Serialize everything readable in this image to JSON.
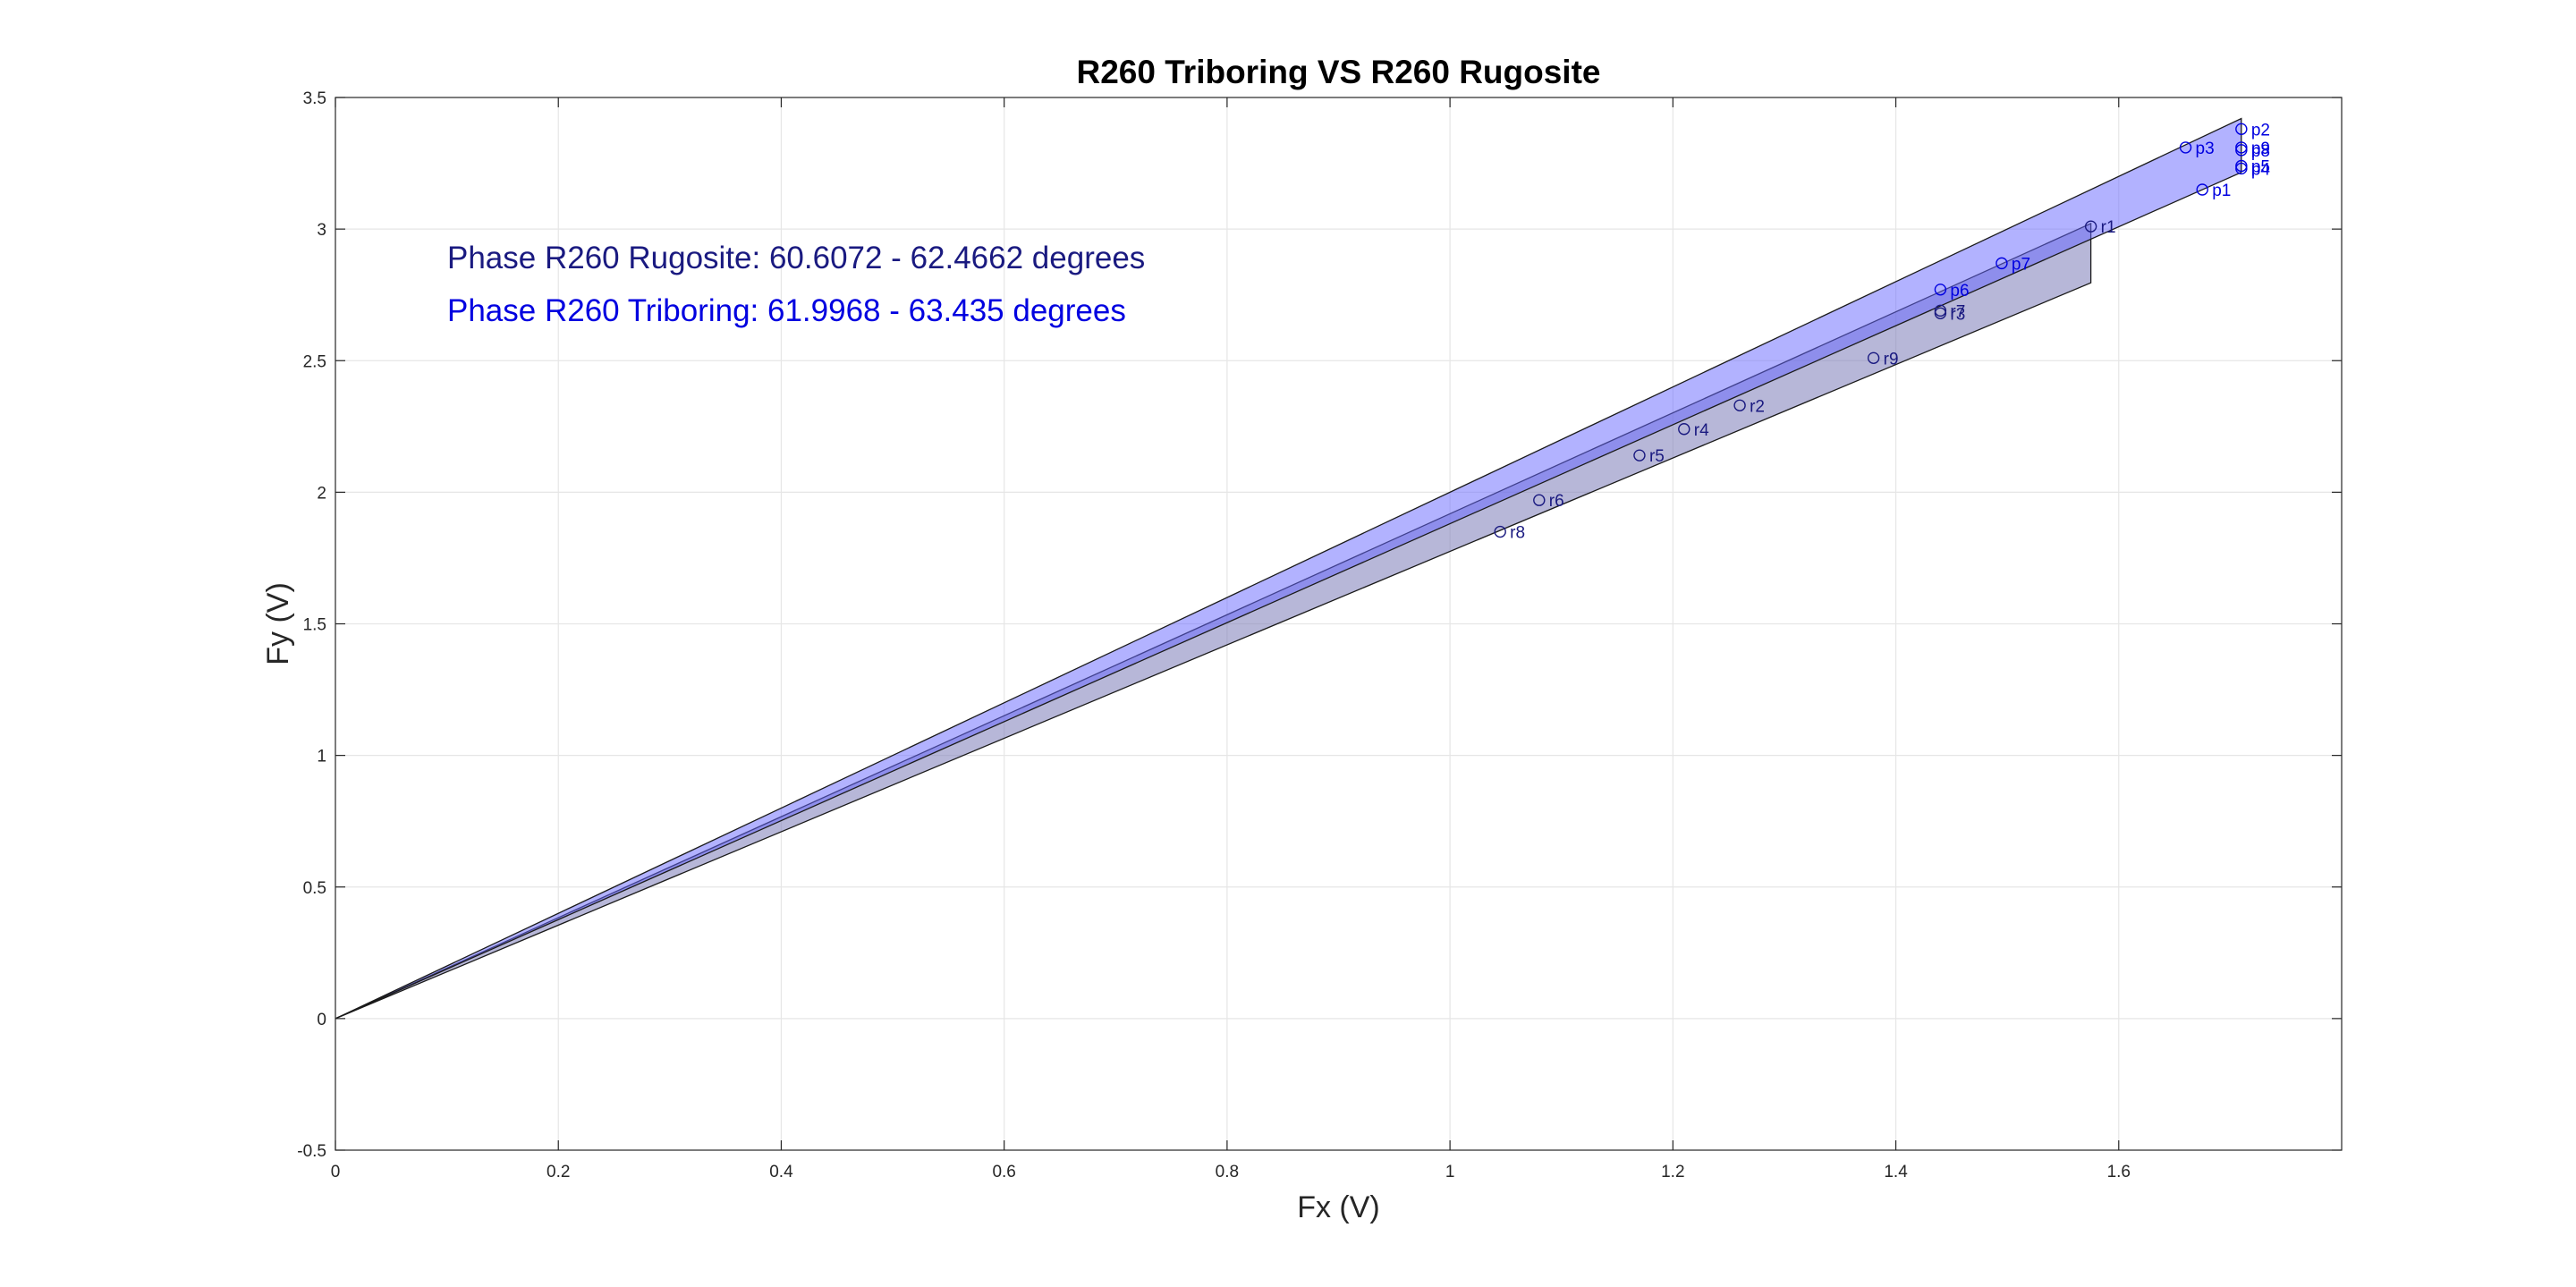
{
  "chart_data": {
    "type": "scatter",
    "title": "R260 Triboring VS R260 Rugosite",
    "xlabel": "Fx (V)",
    "ylabel": "Fy (V)",
    "xlim": [
      0,
      1.8
    ],
    "ylim": [
      -0.5,
      3.5
    ],
    "x_ticks": [
      "0",
      "0.2",
      "0.4",
      "0.6",
      "0.8",
      "1",
      "1.2",
      "1.4",
      "1.6"
    ],
    "x_tick_values": [
      0,
      0.2,
      0.4,
      0.6,
      0.8,
      1,
      1.2,
      1.4,
      1.6
    ],
    "y_ticks": [
      "-0.5",
      "0",
      "0.5",
      "1",
      "1.5",
      "2",
      "2.5",
      "3",
      "3.5"
    ],
    "y_tick_values": [
      -0.5,
      0,
      0.5,
      1,
      1.5,
      2,
      2.5,
      3,
      3.5
    ],
    "grid": true,
    "annotations": [
      {
        "text": "Phase R260 Rugosite: 60.6072 - 62.4662 degrees",
        "color": "#1a1a80"
      },
      {
        "text": "Phase R260 Triboring: 61.9968 - 63.435 degrees",
        "color": "#0000e0"
      }
    ],
    "series": [
      {
        "color": "#1a1a80",
        "wedge": {
          "x_end": 1.575,
          "angle_min_deg": 60.6072,
          "angle_max_deg": 62.4662,
          "fill": "#7b7bb8",
          "fill_opacity": 0.55
        },
        "points": [
          {
            "label": "r1",
            "x": 1.575,
            "y": 3.01
          },
          {
            "label": "r2",
            "x": 1.26,
            "y": 2.33
          },
          {
            "label": "r4",
            "x": 1.21,
            "y": 2.24
          },
          {
            "label": "r5",
            "x": 1.17,
            "y": 2.14
          },
          {
            "label": "r6",
            "x": 1.08,
            "y": 1.97
          },
          {
            "label": "r7",
            "x": 1.44,
            "y": 2.69
          },
          {
            "label": "r8",
            "x": 1.045,
            "y": 1.85
          },
          {
            "label": "r9",
            "x": 1.38,
            "y": 2.51
          },
          {
            "label": "r3",
            "x": 1.44,
            "y": 2.68
          }
        ]
      },
      {
        "color": "#0000e0",
        "wedge": {
          "x_end": 1.71,
          "angle_min_deg": 61.9968,
          "angle_max_deg": 63.435,
          "fill": "#6666ff",
          "fill_opacity": 0.5
        },
        "points": [
          {
            "label": "p1",
            "x": 1.675,
            "y": 3.15
          },
          {
            "label": "p2",
            "x": 1.71,
            "y": 3.38
          },
          {
            "label": "p3",
            "x": 1.66,
            "y": 3.31
          },
          {
            "label": "p4",
            "x": 1.71,
            "y": 3.23
          },
          {
            "label": "p5",
            "x": 1.71,
            "y": 3.24
          },
          {
            "label": "p6",
            "x": 1.44,
            "y": 2.77
          },
          {
            "label": "p7",
            "x": 1.495,
            "y": 2.87
          },
          {
            "label": "p8",
            "x": 1.71,
            "y": 3.3
          },
          {
            "label": "p9",
            "x": 1.71,
            "y": 3.31
          }
        ]
      }
    ]
  }
}
